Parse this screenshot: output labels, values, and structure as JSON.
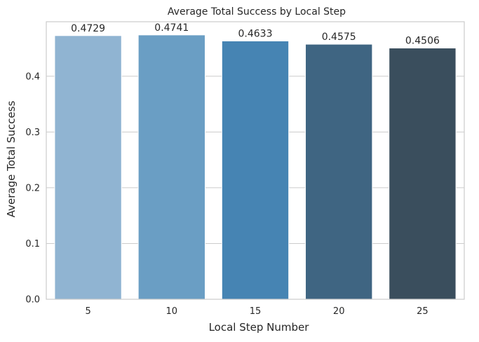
{
  "chart_data": {
    "type": "bar",
    "title": "Average Total Success by Local Step",
    "xlabel": "Local Step Number",
    "ylabel": "Average Total Success",
    "categories": [
      "5",
      "10",
      "15",
      "20",
      "25"
    ],
    "values": [
      0.4729,
      0.4741,
      0.4633,
      0.4575,
      0.4506
    ],
    "value_labels": [
      "0.4729",
      "0.4741",
      "0.4633",
      "0.4575",
      "0.4506"
    ],
    "ylim": [
      0,
      0.4978
    ],
    "yticks": [
      0.0,
      0.1,
      0.2,
      0.3,
      0.4
    ],
    "ytick_labels": [
      "0.0",
      "0.1",
      "0.2",
      "0.3",
      "0.4"
    ],
    "grid": "horizontal",
    "bar_colors": [
      "#90b4d2",
      "#6a9ec4",
      "#4684b3",
      "#3f6582",
      "#3a4e5d"
    ],
    "gridline_color": "#cccccc",
    "axes_edge_color": "#cccccc",
    "bar_edge_color": "#ffffff"
  }
}
